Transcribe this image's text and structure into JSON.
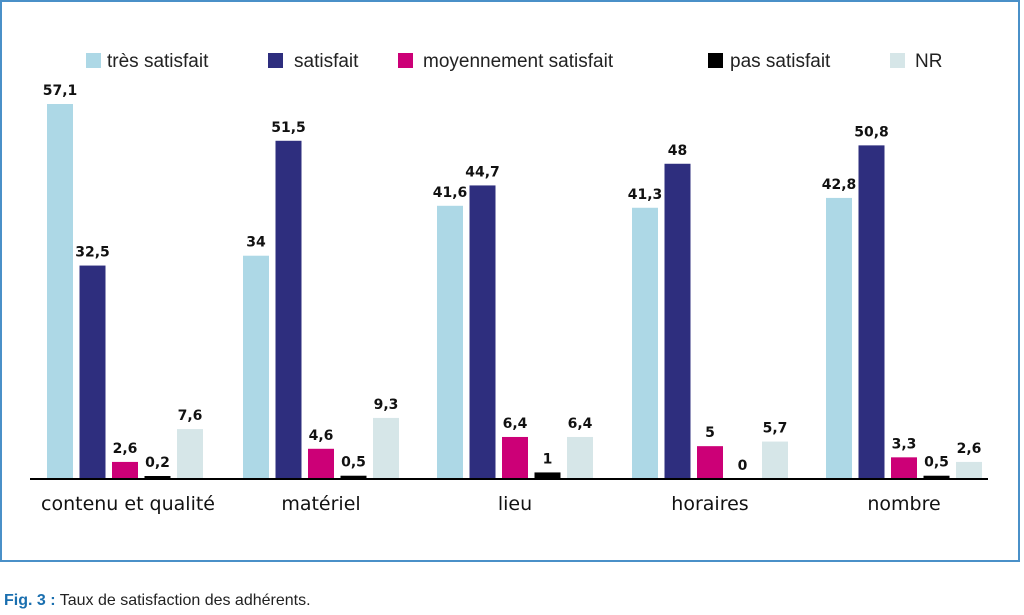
{
  "chart_data": {
    "type": "bar",
    "categories": [
      "contenu et qualité",
      "matériel",
      "lieu",
      "horaires",
      "nombre"
    ],
    "series": [
      {
        "name": "très satisfait",
        "color": "#add8e6",
        "values": [
          57.1,
          34,
          41.6,
          41.3,
          42.8
        ],
        "labels": [
          "57,1",
          "34",
          "41,6",
          "41,3",
          "42,8"
        ]
      },
      {
        "name": "satisfait",
        "color": "#2e2e7e",
        "values": [
          32.5,
          51.5,
          44.7,
          48,
          50.8
        ],
        "labels": [
          "32,5",
          "51,5",
          "44,7",
          "48",
          "50,8"
        ]
      },
      {
        "name": "moyennement satisfait",
        "color": "#cc0077",
        "values": [
          2.6,
          4.6,
          6.4,
          5,
          3.3
        ],
        "labels": [
          "2,6",
          "4,6",
          "6,4",
          "5",
          "3,3"
        ]
      },
      {
        "name": "pas satisfait",
        "color": "#000000",
        "values": [
          0.2,
          0.5,
          1,
          0,
          0.5
        ],
        "labels": [
          "0,2",
          "0,5",
          "1",
          "0",
          "0,5"
        ]
      },
      {
        "name": "NR",
        "color": "#d6e6e8",
        "values": [
          7.6,
          9.3,
          6.4,
          5.7,
          2.6
        ],
        "labels": [
          "7,6",
          "9,3",
          "6,4",
          "5,7",
          "2,6"
        ]
      }
    ],
    "ylim": [
      0,
      60
    ],
    "grid": false,
    "legend_position": "top"
  },
  "caption": {
    "prefix": "Fig. 3 :",
    "text": " Taux de satisfaction des adhérents."
  }
}
